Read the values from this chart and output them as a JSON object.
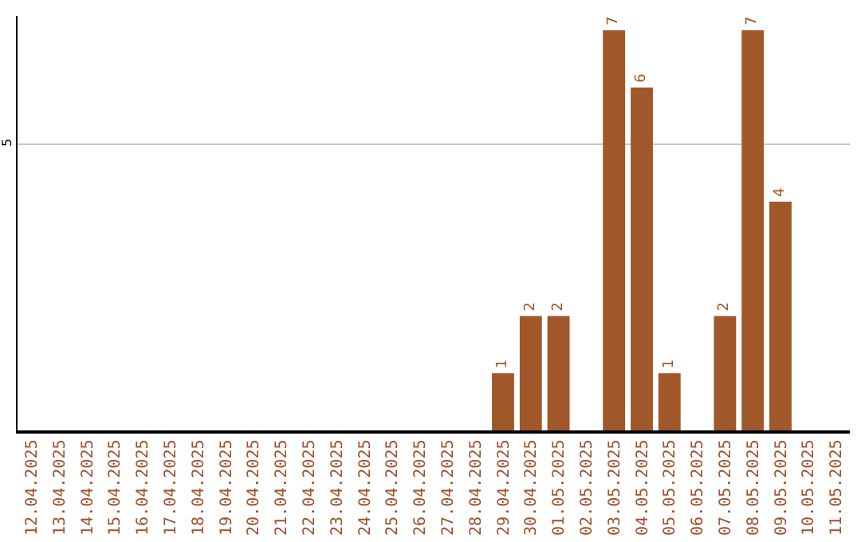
{
  "chart_data": {
    "type": "bar",
    "categories": [
      "12.04.2025",
      "13.04.2025",
      "14.04.2025",
      "15.04.2025",
      "16.04.2025",
      "17.04.2025",
      "18.04.2025",
      "19.04.2025",
      "20.04.2025",
      "21.04.2025",
      "22.04.2025",
      "23.04.2025",
      "24.04.2025",
      "25.04.2025",
      "26.04.2025",
      "27.04.2025",
      "28.04.2025",
      "29.04.2025",
      "30.04.2025",
      "01.05.2025",
      "02.05.2025",
      "03.05.2025",
      "04.05.2025",
      "05.05.2025",
      "06.05.2025",
      "07.05.2025",
      "08.05.2025",
      "09.05.2025",
      "10.05.2025",
      "11.05.2025"
    ],
    "values": [
      null,
      null,
      null,
      null,
      null,
      null,
      null,
      null,
      null,
      null,
      null,
      null,
      null,
      null,
      null,
      null,
      null,
      1,
      2,
      2,
      null,
      7,
      6,
      1,
      null,
      2,
      7,
      4,
      null,
      null
    ],
    "color": "#a0572a",
    "ylim": [
      0,
      7.25
    ],
    "yticks": [
      5
    ],
    "grid": "y",
    "data_labels": true,
    "legend": false
  }
}
